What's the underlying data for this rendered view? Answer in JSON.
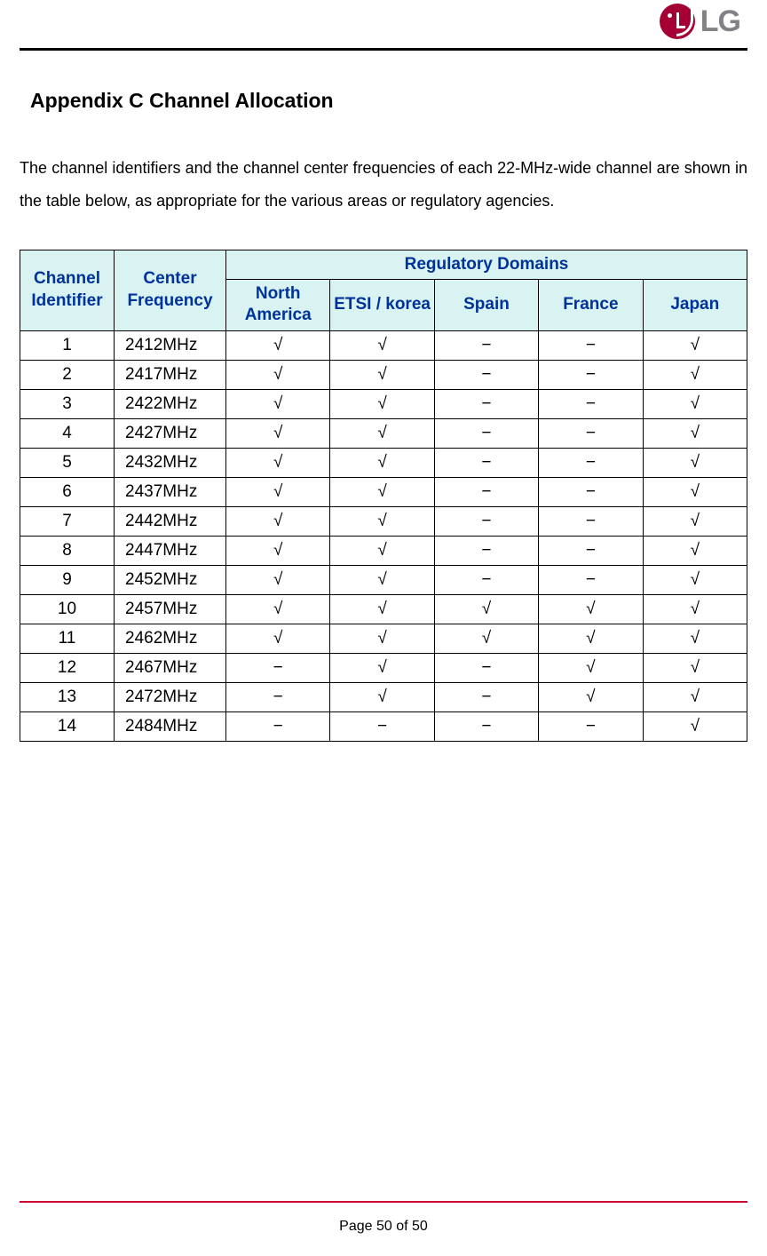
{
  "logo": {
    "text": "LG"
  },
  "title": "Appendix C   Channel Allocation",
  "intro": "The channel identifiers and the channel center frequencies of each 22-MHz-wide channel are shown in the table below, as appropriate for the various areas or regulatory agencies.",
  "table": {
    "header_bg": "#d9f2f2",
    "header_color": "#003399",
    "border_color": "#000000",
    "columns": {
      "id": "Channel Identifier",
      "freq": "Center Frequency",
      "regdom": "Regulatory Domains",
      "na": "North America",
      "etsi": "ETSI / korea",
      "spain": "Spain",
      "france": "France",
      "japan": "Japan"
    },
    "check": "√",
    "dash": "−",
    "rows": [
      {
        "id": "1",
        "freq": "2412MHz",
        "na": "√",
        "etsi": "√",
        "spain": "−",
        "france": "−",
        "japan": "√"
      },
      {
        "id": "2",
        "freq": "2417MHz",
        "na": "√",
        "etsi": "√",
        "spain": "−",
        "france": "−",
        "japan": "√"
      },
      {
        "id": "3",
        "freq": "2422MHz",
        "na": "√",
        "etsi": "√",
        "spain": "−",
        "france": "−",
        "japan": "√"
      },
      {
        "id": "4",
        "freq": "2427MHz",
        "na": "√",
        "etsi": "√",
        "spain": "−",
        "france": "−",
        "japan": "√"
      },
      {
        "id": "5",
        "freq": "2432MHz",
        "na": "√",
        "etsi": "√",
        "spain": "−",
        "france": "−",
        "japan": "√"
      },
      {
        "id": "6",
        "freq": "2437MHz",
        "na": "√",
        "etsi": "√",
        "spain": "−",
        "france": "−",
        "japan": "√"
      },
      {
        "id": "7",
        "freq": "2442MHz",
        "na": "√",
        "etsi": "√",
        "spain": "−",
        "france": "−",
        "japan": "√"
      },
      {
        "id": "8",
        "freq": "2447MHz",
        "na": "√",
        "etsi": "√",
        "spain": "−",
        "france": "−",
        "japan": "√"
      },
      {
        "id": "9",
        "freq": "2452MHz",
        "na": "√",
        "etsi": "√",
        "spain": "−",
        "france": "−",
        "japan": "√"
      },
      {
        "id": "10",
        "freq": "2457MHz",
        "na": "√",
        "etsi": "√",
        "spain": "√",
        "france": "√",
        "japan": "√"
      },
      {
        "id": "11",
        "freq": "2462MHz",
        "na": "√",
        "etsi": "√",
        "spain": "√",
        "france": "√",
        "japan": "√"
      },
      {
        "id": "12",
        "freq": "2467MHz",
        "na": "−",
        "etsi": "√",
        "spain": "−",
        "france": "√",
        "japan": "√"
      },
      {
        "id": "13",
        "freq": "2472MHz",
        "na": "−",
        "etsi": "√",
        "spain": "−",
        "france": "√",
        "japan": "√"
      },
      {
        "id": "14",
        "freq": "2484MHz",
        "na": "−",
        "etsi": "−",
        "spain": "−",
        "france": "−",
        "japan": "√"
      }
    ]
  },
  "footer": {
    "page": "Page 50 of 50"
  }
}
